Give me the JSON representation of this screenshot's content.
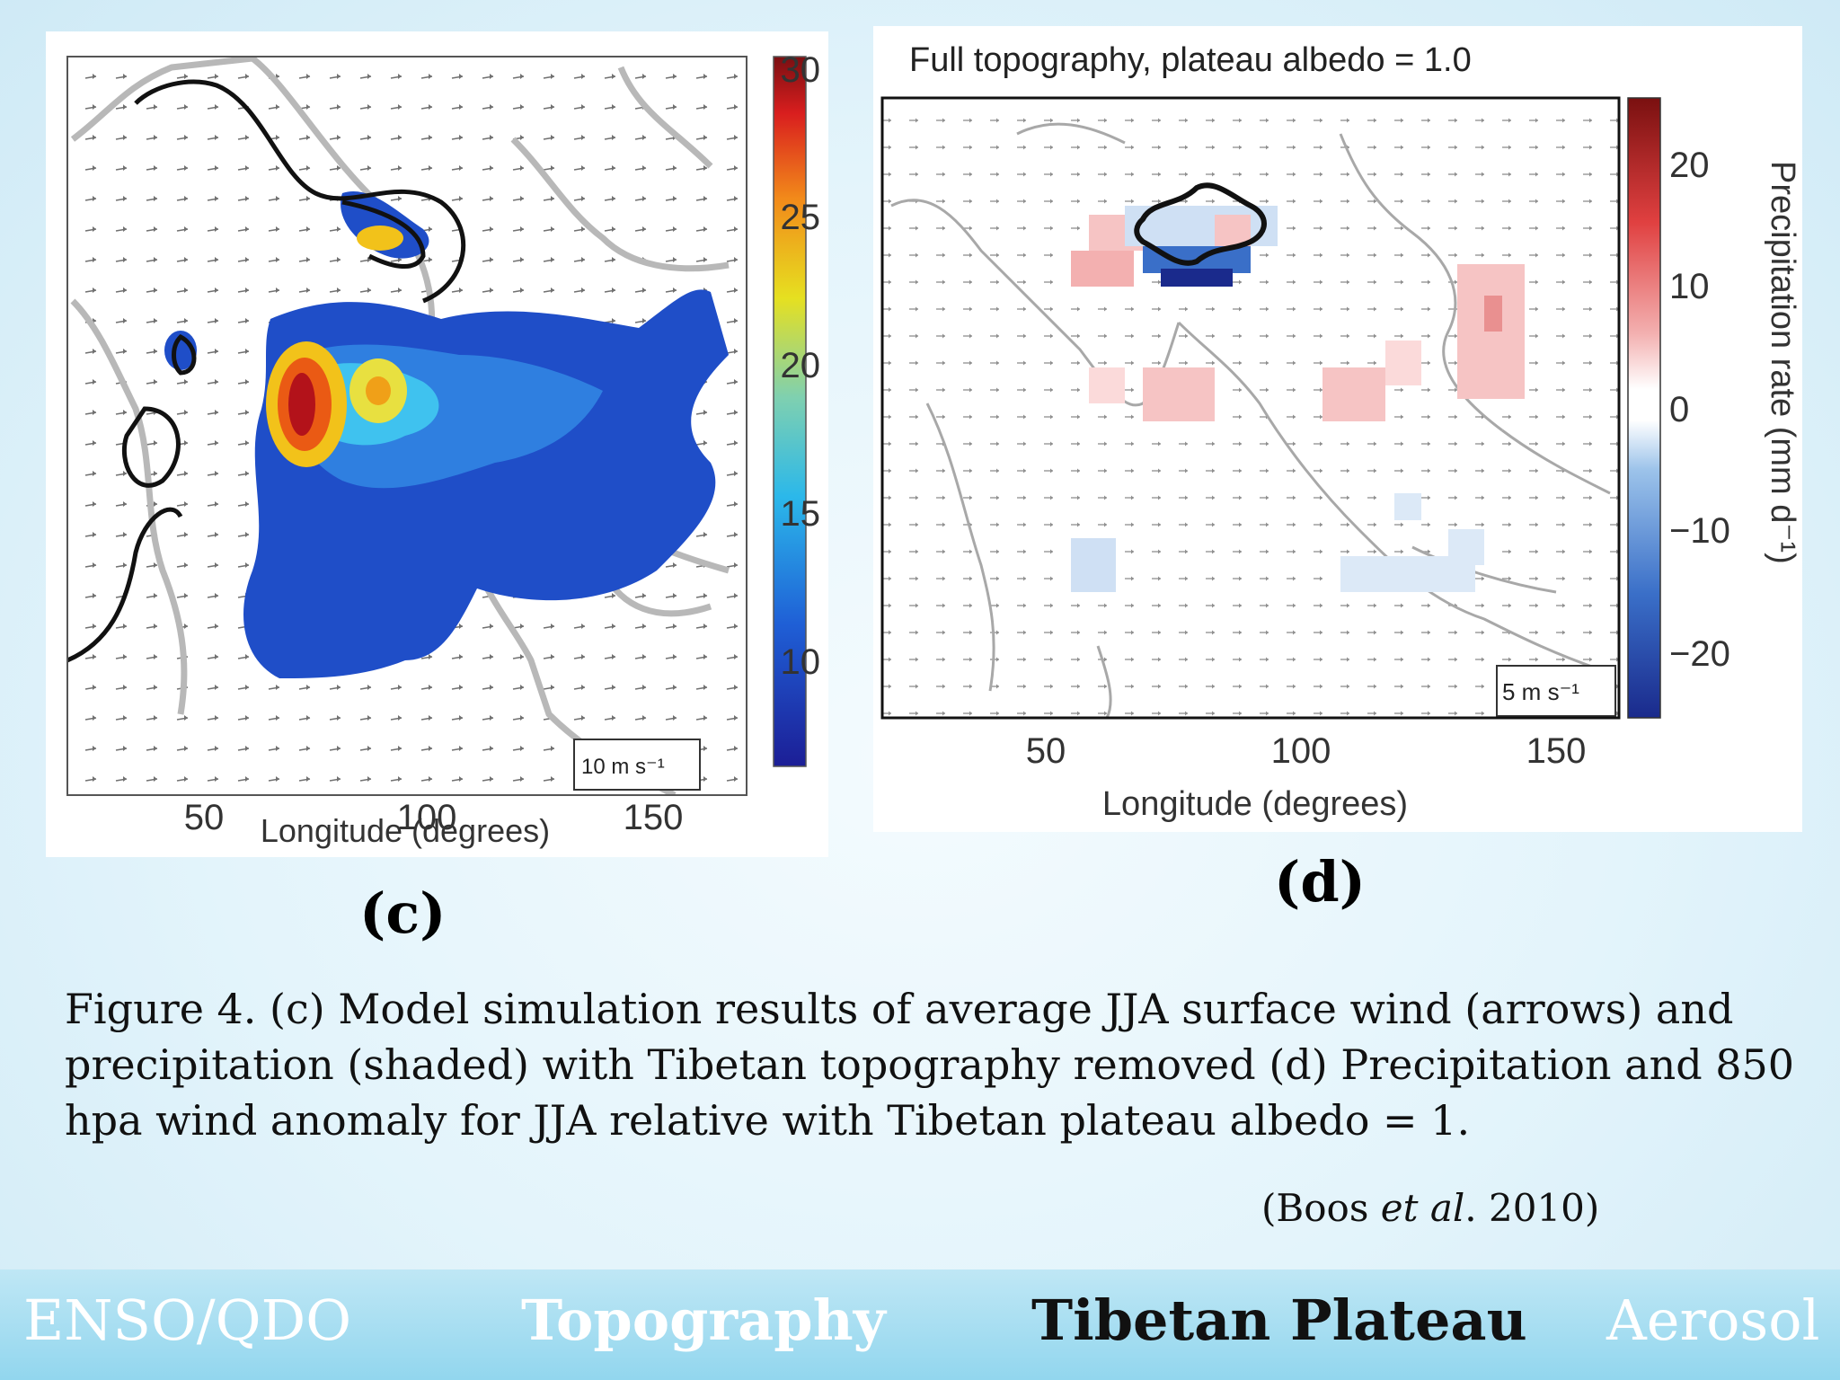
{
  "panel_c": {
    "colorbar": {
      "ticks": [
        "30",
        "25",
        "20",
        "15",
        "10"
      ]
    },
    "xaxis": {
      "label": "Longitude (degrees)",
      "ticks": [
        "50",
        "100",
        "150"
      ]
    },
    "scale_arrow": "10 m s⁻¹"
  },
  "panel_d": {
    "title": "Full topography, plateau albedo = 1.0",
    "colorbar": {
      "label": "Precipitation rate (mm d⁻¹)",
      "ticks": [
        "20",
        "10",
        "0",
        "−10",
        "−20"
      ]
    },
    "xaxis": {
      "label": "Longitude (degrees)",
      "ticks": [
        "50",
        "100",
        "150"
      ]
    },
    "scale_arrow": "5 m s⁻¹"
  },
  "labels": {
    "c": "(c)",
    "d": "(d)"
  },
  "caption": "Figure 4. (c) Model simulation results of average JJA surface wind (arrows) and precipitation (shaded) with Tibetan topography removed (d) Precipitation and 850 hpa wind anomaly for JJA relative with Tibetan plateau albedo = 1.",
  "citation": {
    "open": "(Boos ",
    "etal": "et al",
    "rest": ". 2010)"
  },
  "nav": {
    "items": [
      "ENSO/QDO",
      "Topography",
      "Tibetan Plateau",
      "Aerosol"
    ],
    "active": "Tibetan Plateau"
  },
  "colors": {
    "nav_bar": "#a6def2",
    "active_nav": "#111111",
    "inactive_nav": "#ffffff"
  }
}
